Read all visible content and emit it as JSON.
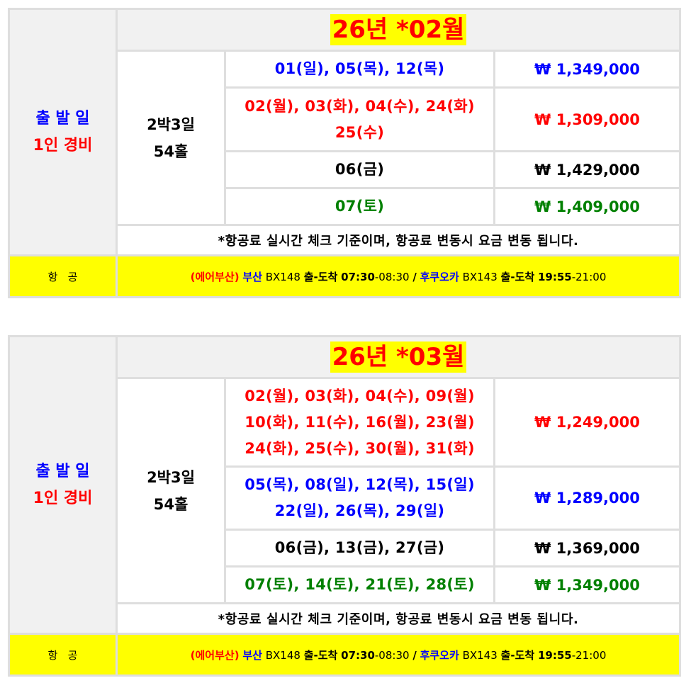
{
  "colors": {
    "blue": "#0000ff",
    "red": "#ff0000",
    "black": "#000000",
    "green": "#008000",
    "highlight": "#ffff00"
  },
  "labels": {
    "departure": "출 발 일",
    "per_person": "1인 경비",
    "duration_nights": "2박3일",
    "holes": "54홀",
    "note": "*항공료 실시간 체크 기준이며, 항공료 변동시 요금 변동 됩니다.",
    "flight_label": "항   공"
  },
  "flight": {
    "airline": "(에어부산)",
    "origin": "부산",
    "out_flight": "BX148",
    "out_word": "출-도착",
    "out_dep": "07:30",
    "out_arr": "-08:30",
    "sep": "/",
    "dest": "후쿠오카",
    "ret_flight": "BX143",
    "ret_word": "출-도착",
    "ret_dep": "19:55",
    "ret_arr": "-21:00"
  },
  "tables": [
    {
      "month": "26년  *02월",
      "rows": [
        {
          "color": "blue",
          "dates": [
            "01(일),  05(목),  12(목)"
          ],
          "price": "₩  1,349,000"
        },
        {
          "color": "red",
          "dates": [
            "02(월),  03(화),  04(수),  24(화)",
            "25(수)"
          ],
          "price": "₩  1,309,000"
        },
        {
          "color": "black",
          "dates": [
            "06(금)"
          ],
          "price": "₩  1,429,000"
        },
        {
          "color": "green",
          "dates": [
            "07(토)"
          ],
          "price": "₩  1,409,000"
        }
      ]
    },
    {
      "month": "26년  *03월",
      "rows": [
        {
          "color": "red",
          "dates": [
            "02(월),  03(화),  04(수),  09(월)",
            "10(화),  11(수),  16(월),  23(월)",
            "24(화),  25(수),  30(월),  31(화)"
          ],
          "price": "₩  1,249,000"
        },
        {
          "color": "blue",
          "dates": [
            "05(목),  08(일),  12(목),  15(일)",
            "22(일),  26(목),  29(일)"
          ],
          "price": "₩  1,289,000"
        },
        {
          "color": "black",
          "dates": [
            "06(금),  13(금),  27(금)"
          ],
          "price": "₩  1,369,000"
        },
        {
          "color": "green",
          "dates": [
            "07(토),  14(토),  21(토),  28(토)"
          ],
          "price": "₩  1,349,000"
        }
      ]
    }
  ]
}
